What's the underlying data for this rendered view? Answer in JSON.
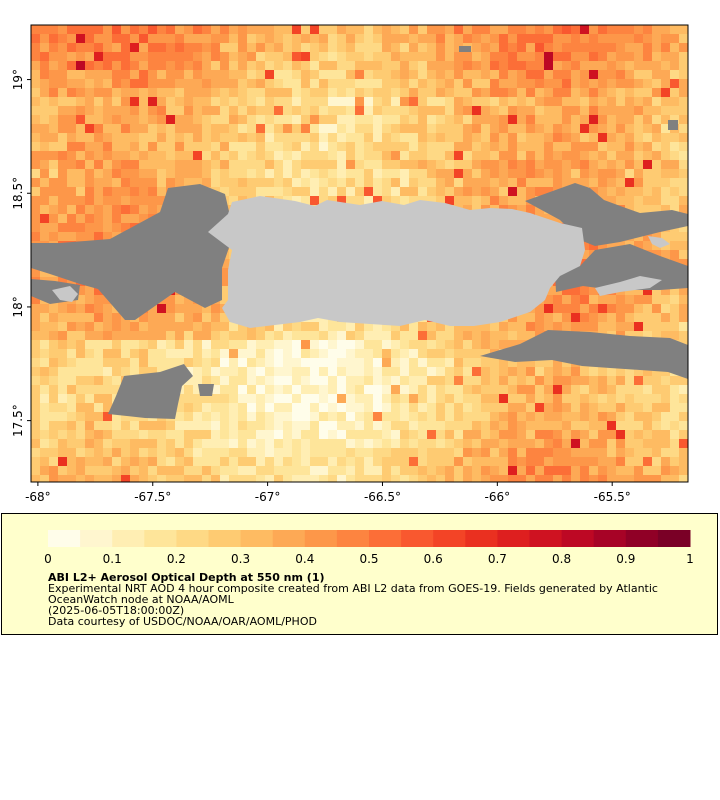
{
  "map": {
    "lat_ticks": [
      {
        "value": 17.5,
        "label": "17.5°"
      },
      {
        "value": 18.0,
        "label": "18°"
      },
      {
        "value": 18.5,
        "label": "18.5°"
      },
      {
        "value": 19.0,
        "label": "19°"
      }
    ],
    "lon_ticks": [
      {
        "value": -68.0,
        "label": "-68°"
      },
      {
        "value": -67.5,
        "label": "-67.5°"
      },
      {
        "value": -67.0,
        "label": "-67°"
      },
      {
        "value": -66.5,
        "label": "-66.5°"
      },
      {
        "value": -66.0,
        "label": "-66°"
      },
      {
        "value": -65.5,
        "label": "-65.5°"
      }
    ],
    "lon_range": [
      -68.03,
      -65.17
    ],
    "lat_range": [
      17.23,
      19.24
    ],
    "colors": {
      "land": "#c8c8c8",
      "no_data": "#808080",
      "frame": "#000000"
    }
  },
  "legend": {
    "title": "ABI L2+ Aerosol Optical Depth at 550 nm (1)",
    "line1": "Experimental NRT AOD 4 hour composite created from ABI L2 data from GOES-19. Fields generated by Atlantic",
    "line2": "OceanWatch node at NOAA/AOML",
    "line3": "(2025-06-05T18:00:00Z)",
    "line4": "Data courtesy of USDOC/NOAA/OAR/AOML/PHOD",
    "range": [
      0,
      1
    ],
    "ticks": [
      {
        "value": 0,
        "label": "0"
      },
      {
        "value": 0.1,
        "label": "0.1"
      },
      {
        "value": 0.2,
        "label": "0.2"
      },
      {
        "value": 0.3,
        "label": "0.3"
      },
      {
        "value": 0.4,
        "label": "0.4"
      },
      {
        "value": 0.5,
        "label": "0.5"
      },
      {
        "value": 0.6,
        "label": "0.6"
      },
      {
        "value": 0.7,
        "label": "0.7"
      },
      {
        "value": 0.8,
        "label": "0.8"
      },
      {
        "value": 0.9,
        "label": "0.9"
      },
      {
        "value": 1,
        "label": "1"
      }
    ],
    "colors": [
      "#fffdea",
      "#fff6cf",
      "#ffeeb3",
      "#fee59a",
      "#fed985",
      "#fecb72",
      "#febb62",
      "#fda955",
      "#fd9749",
      "#fd8440",
      "#fc6e37",
      "#f9582f",
      "#f34426",
      "#ea3020",
      "#de1f1f",
      "#cf1221",
      "#bd0824",
      "#a70326",
      "#900026",
      "#7a0026"
    ]
  }
}
